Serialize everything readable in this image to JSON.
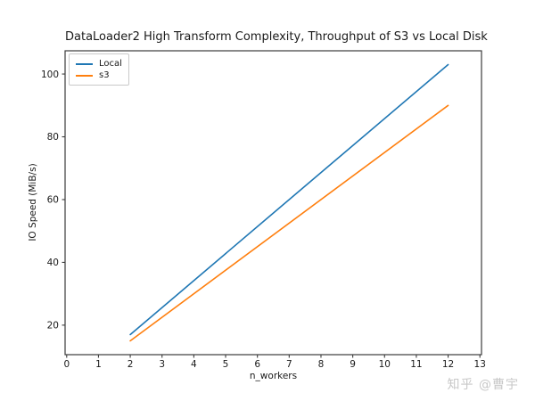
{
  "title": "DataLoader2 High Transform Complexity, Throughput of S3 vs Local Disk",
  "watermark": "知乎 @曹宇",
  "chart_data": {
    "type": "line",
    "title": "DataLoader2 High Transform Complexity, Throughput of S3 vs Local Disk",
    "xlabel": "n_workers",
    "ylabel": "IO Speed (MiB/s)",
    "x": [
      2,
      12
    ],
    "series": [
      {
        "name": "Local",
        "color": "#1f77b4",
        "values": [
          17,
          103
        ]
      },
      {
        "name": "s3",
        "color": "#ff7f0e",
        "values": [
          15,
          90
        ]
      }
    ],
    "x_ticks": [
      0,
      1,
      2,
      3,
      4,
      5,
      6,
      7,
      8,
      9,
      10,
      11,
      12,
      13
    ],
    "y_ticks": [
      20,
      40,
      60,
      80,
      100
    ],
    "xlim": [
      -0.05,
      13.05
    ],
    "ylim": [
      10.6,
      107.4
    ],
    "grid": false,
    "legend_position": "upper left",
    "axis_color": "#3b3b3b"
  }
}
